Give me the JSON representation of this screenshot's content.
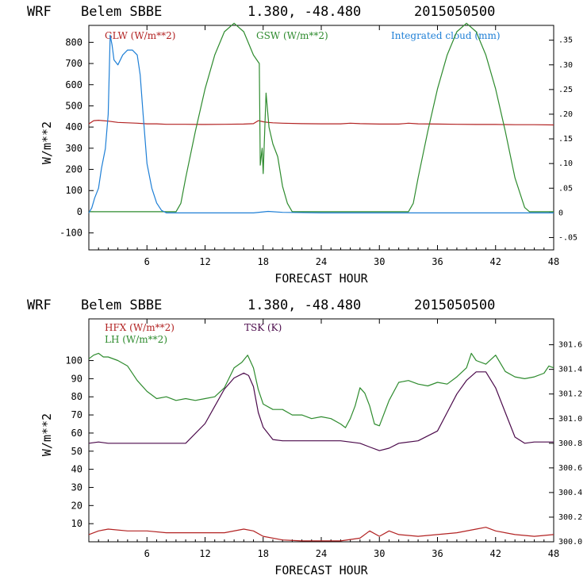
{
  "colors": {
    "glw": "#b22222",
    "gsw": "#2e8b2e",
    "cloud": "#1e7fd6",
    "hfx": "#b22222",
    "lh": "#2e8b2e",
    "tsk": "#4b0a4b"
  },
  "chart_data": [
    {
      "type": "line",
      "title": {
        "model": "WRF",
        "station": "Belem SBBE",
        "coords": "1.380, -48.480",
        "date": "2015050500"
      },
      "xlabel": "FORECAST HOUR",
      "ylabel": "W/m**2",
      "xlim": [
        0,
        48
      ],
      "ylim": [
        -180,
        880
      ],
      "x_ticks": [
        "6",
        "12",
        "18",
        "24",
        "30",
        "36",
        "42",
        "48"
      ],
      "y_ticks": [
        "-100",
        "0",
        "100",
        "200",
        "300",
        "400",
        "500",
        "600",
        "700",
        "800"
      ],
      "y2lim": [
        -0.075,
        0.38
      ],
      "y2_ticks": [
        "-.05",
        "0",
        ".05",
        ".10",
        ".15",
        ".20",
        ".25",
        ".30",
        ".35"
      ],
      "legend": [
        "GLW (W/m**2)",
        "GSW (W/m**2)",
        "Integrated cloud (mm)"
      ],
      "series": [
        {
          "name": "GLW",
          "axis": "left",
          "x": [
            0,
            0.5,
            1,
            2,
            3,
            4,
            5,
            6,
            7,
            8,
            10,
            12,
            14,
            16,
            17,
            17.5,
            18,
            18.5,
            19,
            20,
            22,
            24,
            26,
            27,
            28,
            30,
            32,
            33,
            34,
            36,
            38,
            40,
            42,
            44,
            46,
            48
          ],
          "y": [
            415,
            430,
            432,
            428,
            422,
            420,
            418,
            415,
            415,
            413,
            413,
            412,
            413,
            414,
            416,
            430,
            425,
            422,
            420,
            418,
            416,
            415,
            415,
            418,
            416,
            414,
            414,
            418,
            415,
            414,
            413,
            412,
            412,
            411,
            411,
            410
          ]
        },
        {
          "name": "GSW",
          "axis": "left",
          "x": [
            0,
            9,
            9.5,
            10,
            11,
            12,
            13,
            14,
            15,
            16,
            17,
            17.6,
            17.7,
            17.9,
            18,
            18.3,
            18.6,
            19,
            19.5,
            20,
            20.5,
            21,
            21.5,
            22,
            33,
            33.5,
            34,
            35,
            36,
            37,
            38,
            39,
            40,
            41,
            42,
            43,
            44,
            45,
            45.5,
            48
          ],
          "y": [
            0,
            0,
            40,
            160,
            380,
            580,
            740,
            850,
            890,
            850,
            740,
            700,
            220,
            300,
            180,
            560,
            400,
            320,
            260,
            120,
            40,
            0,
            0,
            0,
            0,
            40,
            160,
            380,
            580,
            740,
            850,
            890,
            850,
            740,
            580,
            380,
            160,
            20,
            0,
            0
          ]
        },
        {
          "name": "Integrated cloud",
          "axis": "right",
          "x": [
            0,
            0.3,
            0.6,
            1,
            1.3,
            1.7,
            2,
            2.2,
            2.4,
            2.6,
            3,
            3.5,
            4,
            4.5,
            5,
            5.3,
            5.6,
            6,
            6.5,
            7,
            7.5,
            8,
            9,
            12,
            17,
            18,
            18.5,
            20,
            24,
            30,
            36,
            42,
            48
          ],
          "y": [
            0,
            0.01,
            0.03,
            0.05,
            0.09,
            0.13,
            0.2,
            0.36,
            0.34,
            0.31,
            0.3,
            0.32,
            0.33,
            0.33,
            0.32,
            0.28,
            0.2,
            0.1,
            0.05,
            0.02,
            0.005,
            0,
            0,
            0,
            0,
            0.002,
            0.003,
            0.001,
            0,
            0,
            0,
            0,
            0
          ]
        }
      ]
    },
    {
      "type": "line",
      "title": {
        "model": "WRF",
        "station": "Belem SBBE",
        "coords": "1.380, -48.480",
        "date": "2015050500"
      },
      "xlabel": "FORECAST HOUR",
      "ylabel": "W/m**2",
      "xlim": [
        0,
        48
      ],
      "ylim": [
        0,
        123
      ],
      "x_ticks": [
        "6",
        "12",
        "18",
        "24",
        "30",
        "36",
        "42",
        "48"
      ],
      "y_ticks": [
        "10",
        "20",
        "30",
        "40",
        "50",
        "60",
        "70",
        "80",
        "90",
        "100"
      ],
      "y2lim": [
        300.0,
        301.81
      ],
      "y2_ticks": [
        "300.0",
        "300.2",
        "300.4",
        "300.6",
        "300.8",
        "301.0",
        "301.2",
        "301.4",
        "301.6"
      ],
      "legend": [
        "HFX (W/m**2)",
        "LH (W/m**2)",
        "TSK (K)"
      ],
      "series": [
        {
          "name": "HFX",
          "axis": "left",
          "x": [
            0,
            1,
            2,
            4,
            6,
            8,
            10,
            12,
            14,
            16,
            17,
            18,
            20,
            22,
            24,
            26,
            28,
            29,
            30,
            31,
            32,
            34,
            36,
            38,
            40,
            41,
            42,
            44,
            46,
            48
          ],
          "y": [
            4,
            6,
            7,
            6,
            6,
            5,
            5,
            5,
            5,
            7,
            6,
            3,
            1,
            0.5,
            0.5,
            0.5,
            2,
            6,
            3,
            6,
            4,
            3,
            4,
            5,
            7,
            8,
            6,
            4,
            3,
            4
          ]
        },
        {
          "name": "LH",
          "axis": "left",
          "x": [
            0,
            0.5,
            1,
            1.5,
            2,
            3,
            4,
            5,
            6,
            7,
            8,
            9,
            10,
            11,
            12,
            13,
            14,
            15,
            15.8,
            16.4,
            17,
            17.5,
            18,
            19,
            20,
            21,
            22,
            23,
            24,
            25,
            26,
            26.5,
            27,
            27.5,
            28,
            28.5,
            29,
            29.5,
            30,
            31,
            32,
            33,
            34,
            35,
            36,
            37,
            38,
            39,
            39.5,
            40,
            41,
            42,
            43,
            44,
            45,
            46,
            47,
            47.5,
            48
          ],
          "y": [
            101,
            103,
            104,
            102,
            102,
            100,
            97,
            89,
            83,
            79,
            80,
            78,
            79,
            78,
            79,
            80,
            85,
            96,
            99,
            103,
            96,
            84,
            76,
            73,
            73,
            70,
            70,
            68,
            69,
            68,
            65,
            63,
            68,
            75,
            85,
            82,
            75,
            65,
            64,
            78,
            88,
            89,
            87,
            86,
            88,
            87,
            91,
            96,
            104,
            100,
            98,
            103,
            94,
            91,
            90,
            91,
            93,
            97,
            96
          ]
        },
        {
          "name": "TSK",
          "axis": "right",
          "x": [
            0,
            1,
            2,
            4,
            6,
            8,
            10,
            12,
            13,
            14,
            15,
            16,
            16.5,
            17,
            17.5,
            18,
            19,
            20,
            22,
            24,
            26,
            28,
            29,
            30,
            31,
            32,
            34,
            36,
            37,
            38,
            39,
            40,
            41,
            42,
            43,
            44,
            45,
            46,
            48
          ],
          "y": [
            300.8,
            300.81,
            300.8,
            300.8,
            300.8,
            300.8,
            300.8,
            300.96,
            301.1,
            301.24,
            301.33,
            301.37,
            301.35,
            301.26,
            301.05,
            300.93,
            300.83,
            300.82,
            300.82,
            300.82,
            300.82,
            300.8,
            300.77,
            300.74,
            300.76,
            300.8,
            300.82,
            300.9,
            301.05,
            301.2,
            301.31,
            301.38,
            301.38,
            301.25,
            301.05,
            300.85,
            300.8,
            300.81,
            300.81
          ]
        }
      ]
    }
  ]
}
